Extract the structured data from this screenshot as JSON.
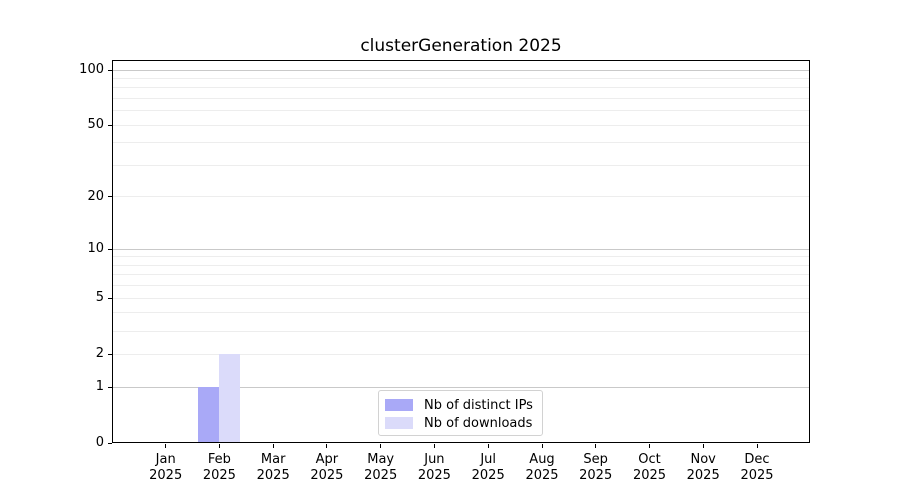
{
  "chart_data": {
    "type": "bar",
    "title": "clusterGeneration 2025",
    "xlabel": "",
    "ylabel": "",
    "y_scale": "log10(1+x)",
    "ylim": [
      0,
      112
    ],
    "grid": "on",
    "legend_position": "lower center inside plot",
    "categories": [
      "Jan 2025",
      "Feb 2025",
      "Mar 2025",
      "Apr 2025",
      "May 2025",
      "Jun 2025",
      "Jul 2025",
      "Aug 2025",
      "Sep 2025",
      "Oct 2025",
      "Nov 2025",
      "Dec 2025"
    ],
    "series": [
      {
        "name": "Nb of distinct IPs",
        "color": "#a9a9f7",
        "values": [
          0,
          1,
          0,
          0,
          0,
          0,
          0,
          0,
          0,
          0,
          0,
          0
        ]
      },
      {
        "name": "Nb of downloads",
        "color": "#dbdbfa",
        "values": [
          0,
          2,
          0,
          0,
          0,
          0,
          0,
          0,
          0,
          0,
          0,
          0
        ]
      }
    ],
    "y_axis": {
      "tick_values": [
        100,
        50,
        20,
        10,
        5,
        2,
        1,
        0
      ],
      "tick_labels": [
        "100",
        "50",
        "20",
        "10",
        "5",
        "2",
        "1",
        "0"
      ],
      "major_grid_values": [
        1,
        10,
        100
      ],
      "minor_grid_values": [
        2,
        3,
        4,
        5,
        6,
        7,
        8,
        9,
        20,
        30,
        40,
        50,
        60,
        70,
        80,
        90
      ],
      "major_grid_color": "#c9c9c9",
      "minor_grid_color": "#ededed"
    },
    "colors": {
      "axis": "#000000",
      "background": "#ffffff",
      "bar_distinct_ips": "#a9a9f7",
      "bar_downloads": "#dbdbfa"
    }
  }
}
